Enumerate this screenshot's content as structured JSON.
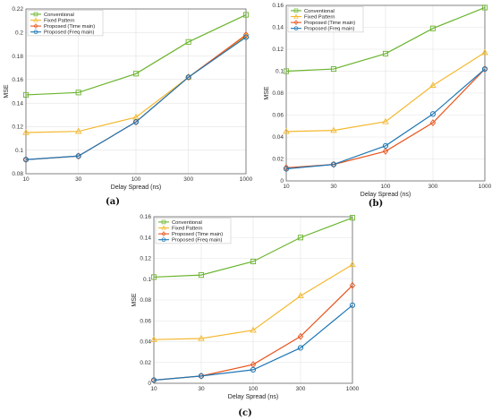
{
  "colors": {
    "conventional": "#6ab42d",
    "fixed": "#f4b82e",
    "time": "#e8541c",
    "freq": "#1f77b4",
    "grid": "#e3e3e3",
    "axis": "#555555"
  },
  "chart_data": [
    {
      "type": "line",
      "panel_label": "(a)",
      "x": [
        10,
        30,
        100,
        300,
        1000
      ],
      "xscale": "log",
      "xticks": [
        "10",
        "30",
        "100",
        "300",
        "1000"
      ],
      "xlabel": "Delay Spread (ns)",
      "ylabel": "MSE",
      "ylim": [
        0.08,
        0.22
      ],
      "yticks": [
        "0.08",
        "0.1",
        "0.12",
        "0.14",
        "0.16",
        "0.18",
        "0.2",
        "0.22"
      ],
      "grid": true,
      "legend": "top-left",
      "series": [
        {
          "name": "Conventional",
          "key": "conventional",
          "marker": "square",
          "values": [
            0.147,
            0.149,
            0.165,
            0.192,
            0.215
          ]
        },
        {
          "name": "Fixed Pattern",
          "key": "fixed",
          "marker": "triangle",
          "values": [
            0.115,
            0.116,
            0.128,
            0.162,
            0.197
          ]
        },
        {
          "name": "Proposed (Time main)",
          "key": "time",
          "marker": "diamond",
          "values": [
            0.092,
            0.095,
            0.124,
            0.162,
            0.198
          ]
        },
        {
          "name": "Proposed (Freq main)",
          "key": "freq",
          "marker": "circle",
          "values": [
            0.092,
            0.095,
            0.124,
            0.162,
            0.196
          ]
        }
      ]
    },
    {
      "type": "line",
      "panel_label": "(b)",
      "x": [
        10,
        30,
        100,
        300,
        1000
      ],
      "xscale": "log",
      "xticks": [
        "10",
        "30",
        "100",
        "300",
        "1000"
      ],
      "xlabel": "Delay Spread (ns)",
      "ylabel": "MSE",
      "ylim": [
        0,
        0.16
      ],
      "yticks": [
        "0",
        "0.02",
        "0.04",
        "0.06",
        "0.08",
        "0.1",
        "0.12",
        "0.14",
        "0.16"
      ],
      "grid": true,
      "legend": "top-left",
      "series": [
        {
          "name": "Conventional",
          "key": "conventional",
          "marker": "square",
          "values": [
            0.1,
            0.102,
            0.116,
            0.139,
            0.158
          ]
        },
        {
          "name": "Fixed Pattern",
          "key": "fixed",
          "marker": "triangle",
          "values": [
            0.045,
            0.046,
            0.054,
            0.087,
            0.117
          ]
        },
        {
          "name": "Proposed (Time main)",
          "key": "time",
          "marker": "diamond",
          "values": [
            0.012,
            0.015,
            0.027,
            0.053,
            0.102
          ]
        },
        {
          "name": "Proposed (Freq main)",
          "key": "freq",
          "marker": "circle",
          "values": [
            0.011,
            0.015,
            0.032,
            0.061,
            0.102
          ]
        }
      ]
    },
    {
      "type": "line",
      "panel_label": "(c)",
      "x": [
        10,
        30,
        100,
        300,
        1000
      ],
      "xscale": "log",
      "xticks": [
        "10",
        "30",
        "100",
        "300",
        "1000"
      ],
      "xlabel": "Delay Spread (ns)",
      "ylabel": "MSE",
      "ylim": [
        0,
        0.16
      ],
      "yticks": [
        "0",
        "0.02",
        "0.04",
        "0.06",
        "0.08",
        "0.1",
        "0.12",
        "0.14",
        "0.16"
      ],
      "grid": true,
      "legend": "top-left",
      "series": [
        {
          "name": "Conventional",
          "key": "conventional",
          "marker": "square",
          "values": [
            0.102,
            0.104,
            0.117,
            0.14,
            0.159
          ]
        },
        {
          "name": "Fixed Pattern",
          "key": "fixed",
          "marker": "triangle",
          "values": [
            0.042,
            0.043,
            0.051,
            0.084,
            0.114
          ]
        },
        {
          "name": "Proposed (Time main)",
          "key": "time",
          "marker": "diamond",
          "values": [
            0.003,
            0.007,
            0.018,
            0.045,
            0.094
          ]
        },
        {
          "name": "Proposed (Freq main)",
          "key": "freq",
          "marker": "circle",
          "values": [
            0.003,
            0.007,
            0.013,
            0.034,
            0.075
          ]
        }
      ]
    }
  ]
}
